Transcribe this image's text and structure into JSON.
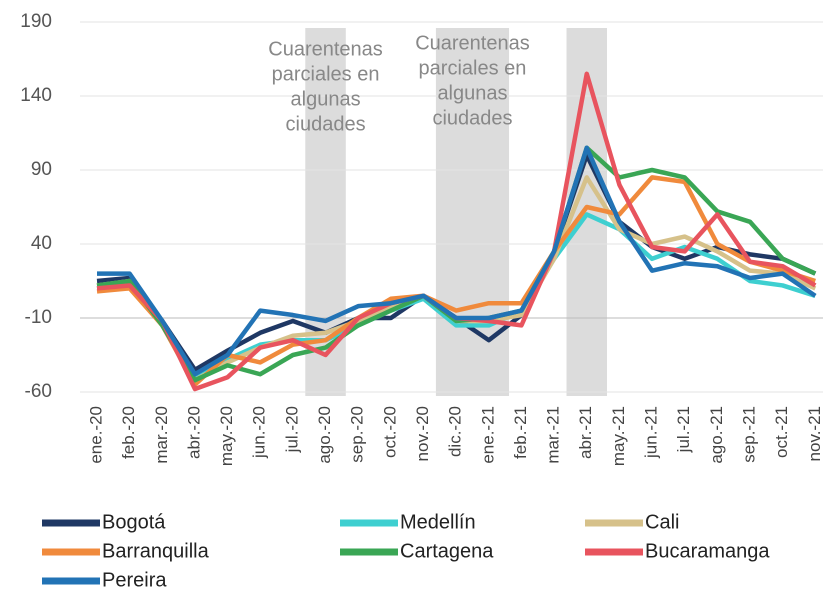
{
  "chart_data": {
    "type": "line",
    "categories": [
      "ene.-20",
      "feb.-20",
      "mar.-20",
      "abr.-20",
      "may.-20",
      "jun.-20",
      "jul.-20",
      "ago.-20",
      "sep.-20",
      "oct.-20",
      "nov.-20",
      "dic.-20",
      "ene.-21",
      "feb.-21",
      "mar.-21",
      "abr.-21",
      "may.-21",
      "jun.-21",
      "jul.-21",
      "ago.-21",
      "sep.-21",
      "oct.-21",
      "nov.-21"
    ],
    "ylim": [
      -60,
      190
    ],
    "yticks": [
      -60,
      -10,
      40,
      90,
      140,
      190
    ],
    "grid": true,
    "legend": "bottom",
    "shaded_periods": [
      {
        "categories": [
          "ago.-20"
        ],
        "color": "#dcdcdc",
        "label": [
          "Cuarentenas",
          "parciales en",
          "algunas",
          "ciudades"
        ]
      },
      {
        "categories": [
          "dic.-20",
          "ene.-21"
        ],
        "color": "#dcdcdc",
        "label": [
          "Cuarentenas",
          "parciales  en",
          "algunas",
          "ciudades"
        ]
      },
      {
        "categories": [
          "abr.-21"
        ],
        "color": "#dcdcdc"
      }
    ],
    "series": [
      {
        "name": "Bogotá",
        "color": "#1f3864",
        "values": [
          15,
          17,
          -12,
          -45,
          -32,
          -20,
          -12,
          -20,
          -10,
          -10,
          5,
          -10,
          -25,
          -8,
          35,
          100,
          55,
          38,
          30,
          38,
          33,
          30,
          20
        ]
      },
      {
        "name": "Medellín",
        "color": "#3ecfd0",
        "values": [
          10,
          12,
          -15,
          -50,
          -38,
          -28,
          -25,
          -25,
          -15,
          -5,
          3,
          -15,
          -15,
          -5,
          30,
          60,
          50,
          30,
          38,
          30,
          15,
          12,
          5
        ]
      },
      {
        "name": "Cali",
        "color": "#d6c18a",
        "values": [
          12,
          15,
          -15,
          -52,
          -40,
          -30,
          -22,
          -20,
          -12,
          -3,
          5,
          -12,
          -12,
          -8,
          30,
          85,
          50,
          40,
          45,
          35,
          22,
          20,
          10
        ]
      },
      {
        "name": "Barranquilla",
        "color": "#f08a3c",
        "values": [
          8,
          10,
          -15,
          -55,
          -35,
          -40,
          -28,
          -25,
          -10,
          3,
          5,
          -5,
          0,
          0,
          35,
          65,
          60,
          85,
          82,
          40,
          28,
          22,
          15
        ]
      },
      {
        "name": "Cartagena",
        "color": "#3aa655",
        "values": [
          12,
          15,
          -15,
          -52,
          -42,
          -48,
          -35,
          -30,
          -15,
          -5,
          5,
          -12,
          -10,
          -5,
          35,
          105,
          85,
          90,
          85,
          62,
          55,
          30,
          20
        ]
      },
      {
        "name": "Bucaramanga",
        "color": "#e8545e",
        "values": [
          10,
          12,
          -12,
          -58,
          -50,
          -30,
          -25,
          -35,
          -10,
          0,
          5,
          -10,
          -12,
          -15,
          35,
          155,
          80,
          38,
          35,
          60,
          28,
          25,
          12
        ]
      },
      {
        "name": "Pereira",
        "color": "#2273b5",
        "values": [
          20,
          20,
          -12,
          -48,
          -35,
          -5,
          -8,
          -12,
          -2,
          0,
          5,
          -10,
          -10,
          -5,
          35,
          105,
          55,
          22,
          27,
          25,
          17,
          20,
          5
        ]
      }
    ]
  }
}
